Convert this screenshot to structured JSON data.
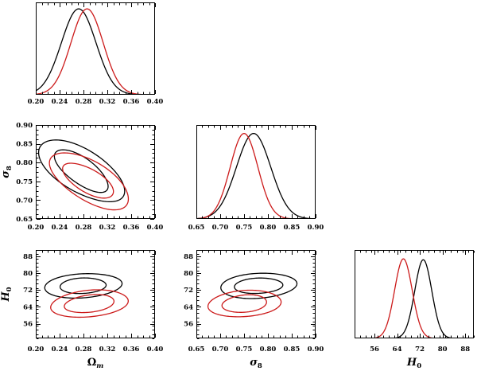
{
  "figure": {
    "kind": "cosmology corner plot (triangle plot) of posterior constraints",
    "background": "#ffffff",
    "axis_color": "#000000",
    "series": [
      {
        "key": "black",
        "color": "#000000"
      },
      {
        "key": "red",
        "color": "#cc1a1a"
      }
    ]
  },
  "chart_data": [
    {
      "id": "omega_m_1d",
      "type": "line",
      "kind": "1d_posterior",
      "grid": false,
      "legend": false,
      "xlim": [
        0.2,
        0.4
      ],
      "xticks": [
        0.2,
        0.24,
        0.28,
        0.32,
        0.36,
        0.4
      ],
      "xtick_labels": [
        "0.20",
        "0.24",
        "0.28",
        "0.32",
        "0.36",
        "0.40"
      ],
      "x_minor_step": 0.01,
      "show_xtick_labels": true,
      "xlabel": null,
      "ylabel": null,
      "curves": [
        {
          "series": "black",
          "peak_x": 0.272,
          "sigma": 0.029,
          "peak_height": 0.93
        },
        {
          "series": "red",
          "peak_x": 0.286,
          "sigma": 0.027,
          "peak_height": 0.93
        }
      ]
    },
    {
      "id": "omega_m_sigma8",
      "type": "contour",
      "kind": "2d_posterior",
      "grid": false,
      "legend": false,
      "xlim": [
        0.2,
        0.4
      ],
      "xticks": [
        0.2,
        0.24,
        0.28,
        0.32,
        0.36,
        0.4
      ],
      "xtick_labels": [
        "0.20",
        "0.24",
        "0.28",
        "0.32",
        "0.36",
        "0.40"
      ],
      "x_minor_step": 0.01,
      "show_xtick_labels": true,
      "ylim": [
        0.65,
        0.9
      ],
      "yticks": [
        0.65,
        0.7,
        0.75,
        0.8,
        0.85,
        0.9
      ],
      "ytick_labels": [
        "0.65",
        "0.70",
        "0.75",
        "0.80",
        "0.85",
        "0.90"
      ],
      "y_minor_step": 0.0125,
      "show_ytick_labels": true,
      "xlabel": null,
      "ylabel": {
        "main": "σ",
        "sub": "8",
        "main_italic": true,
        "sub_italic": false
      },
      "contours": [
        {
          "series": "black",
          "level": "outer",
          "center": [
            0.2765,
            0.778
          ],
          "a": 0.44,
          "b": 0.21,
          "angle_deg": -42
        },
        {
          "series": "black",
          "level": "inner",
          "center": [
            0.2765,
            0.778
          ],
          "a": 0.29,
          "b": 0.125,
          "angle_deg": -45
        },
        {
          "series": "red",
          "level": "outer",
          "center": [
            0.29,
            0.751
          ],
          "a": 0.41,
          "b": 0.19,
          "angle_deg": -40
        },
        {
          "series": "red",
          "level": "inner",
          "center": [
            0.288,
            0.752
          ],
          "a": 0.26,
          "b": 0.115,
          "angle_deg": -40
        }
      ]
    },
    {
      "id": "sigma8_1d",
      "type": "line",
      "kind": "1d_posterior",
      "grid": false,
      "legend": false,
      "xlim": [
        0.65,
        0.9
      ],
      "xticks": [
        0.65,
        0.7,
        0.75,
        0.8,
        0.85,
        0.9
      ],
      "xtick_labels": [
        "0.65",
        "0.70",
        "0.75",
        "0.80",
        "0.85",
        "0.90"
      ],
      "x_minor_step": 0.0125,
      "show_xtick_labels": true,
      "xlabel": null,
      "ylabel": null,
      "curves": [
        {
          "series": "black",
          "peak_x": 0.77,
          "sigma": 0.036,
          "peak_height": 0.91
        },
        {
          "series": "red",
          "peak_x": 0.75,
          "sigma": 0.029,
          "peak_height": 0.91
        }
      ]
    },
    {
      "id": "omega_m_h0",
      "type": "contour",
      "kind": "2d_posterior",
      "grid": false,
      "legend": false,
      "xlim": [
        0.2,
        0.4
      ],
      "xticks": [
        0.2,
        0.24,
        0.28,
        0.32,
        0.36,
        0.4
      ],
      "xtick_labels": [
        "0.20",
        "0.24",
        "0.28",
        "0.32",
        "0.36",
        "0.40"
      ],
      "x_minor_step": 0.01,
      "show_xtick_labels": true,
      "ylim": [
        49,
        91
      ],
      "yticks": [
        56,
        64,
        72,
        80,
        88
      ],
      "ytick_labels": [
        "56",
        "64",
        "72",
        "80",
        "88"
      ],
      "y_minor_step": 2,
      "show_ytick_labels": true,
      "xlabel": {
        "main": "Ω",
        "sub": "m",
        "main_italic": false,
        "sub_italic": true
      },
      "ylabel": {
        "main": "H",
        "sub": "0",
        "main_italic": true,
        "sub_italic": false
      },
      "contours": [
        {
          "series": "black",
          "level": "outer",
          "center": [
            0.279,
            74.0
          ],
          "a": 0.325,
          "b": 0.136,
          "angle_deg": 4
        },
        {
          "series": "black",
          "level": "inner",
          "center": [
            0.279,
            74.0
          ],
          "a": 0.19,
          "b": 0.089,
          "angle_deg": 4
        },
        {
          "series": "red",
          "level": "outer",
          "center": [
            0.29,
            65.5
          ],
          "a": 0.331,
          "b": 0.148,
          "angle_deg": 9
        },
        {
          "series": "red",
          "level": "inner",
          "center": [
            0.29,
            65.5
          ],
          "a": 0.213,
          "b": 0.096,
          "angle_deg": 9
        }
      ]
    },
    {
      "id": "sigma8_h0",
      "type": "contour",
      "kind": "2d_posterior",
      "grid": false,
      "legend": false,
      "xlim": [
        0.65,
        0.9
      ],
      "xticks": [
        0.65,
        0.7,
        0.75,
        0.8,
        0.85,
        0.9
      ],
      "xtick_labels": [
        "0.65",
        "0.70",
        "0.75",
        "0.80",
        "0.85",
        "0.90"
      ],
      "x_minor_step": 0.0125,
      "show_xtick_labels": true,
      "ylim": [
        49,
        91
      ],
      "yticks": [
        56,
        64,
        72,
        80,
        88
      ],
      "ytick_labels": [
        "56",
        "64",
        "72",
        "80",
        "88"
      ],
      "y_minor_step": 2,
      "show_ytick_labels": true,
      "xlabel": {
        "main": "σ",
        "sub": "8",
        "main_italic": true,
        "sub_italic": false
      },
      "ylabel": null,
      "contours": [
        {
          "series": "black",
          "level": "outer",
          "center": [
            0.78,
            74.0
          ],
          "a": 0.32,
          "b": 0.141,
          "angle_deg": 4
        },
        {
          "series": "black",
          "level": "inner",
          "center": [
            0.78,
            74.0
          ],
          "a": 0.2,
          "b": 0.088,
          "angle_deg": 4
        },
        {
          "series": "red",
          "level": "outer",
          "center": [
            0.751,
            65.5
          ],
          "a": 0.311,
          "b": 0.146,
          "angle_deg": 7
        },
        {
          "series": "red",
          "level": "inner",
          "center": [
            0.751,
            65.5
          ],
          "a": 0.19,
          "b": 0.096,
          "angle_deg": 7
        }
      ]
    },
    {
      "id": "h0_1d",
      "type": "line",
      "kind": "1d_posterior",
      "grid": false,
      "legend": false,
      "xlim": [
        49,
        91
      ],
      "xticks": [
        56,
        64,
        72,
        80,
        88
      ],
      "xtick_labels": [
        "56",
        "64",
        "72",
        "80",
        "88"
      ],
      "x_minor_step": 2,
      "show_xtick_labels": true,
      "xlabel": {
        "main": "H",
        "sub": "0",
        "main_italic": true,
        "sub_italic": false
      },
      "ylabel": null,
      "curves": [
        {
          "series": "black",
          "peak_x": 73.2,
          "sigma": 3.0,
          "peak_height": 0.89
        },
        {
          "series": "red",
          "peak_x": 66.2,
          "sigma": 3.1,
          "peak_height": 0.9
        }
      ]
    }
  ]
}
